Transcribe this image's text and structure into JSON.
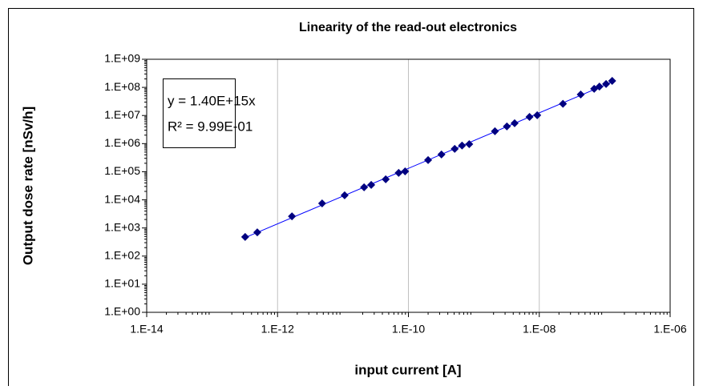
{
  "chart_data": {
    "type": "scatter",
    "title": "Linearity of the read-out electronics",
    "x_label": "input current [A]",
    "y_label": "Output dose rate [nSv/h]",
    "annotations": [
      "y = 1.40E+15x",
      "R² = 9.99E-01"
    ],
    "log_x": true,
    "log_y": true,
    "grid": "x",
    "trendline": true,
    "xlim": [
      1e-14,
      1e-06
    ],
    "ylim": [
      1,
      1000000000.0
    ],
    "xticks": [
      {
        "value": 1e-14,
        "label": "1.E-14"
      },
      {
        "value": 1e-12,
        "label": "1.E-12"
      },
      {
        "value": 1e-10,
        "label": "1.E-10"
      },
      {
        "value": 1e-08,
        "label": "1.E-08"
      },
      {
        "value": 1e-06,
        "label": "1.E-06"
      }
    ],
    "yticks": [
      {
        "value": 1,
        "label": "1.E+00"
      },
      {
        "value": 10,
        "label": "1.E+01"
      },
      {
        "value": 100,
        "label": "1.E+02"
      },
      {
        "value": 1000,
        "label": "1.E+03"
      },
      {
        "value": 10000,
        "label": "1.E+04"
      },
      {
        "value": 100000,
        "label": "1.E+05"
      },
      {
        "value": 1000000,
        "label": "1.E+06"
      },
      {
        "value": 10000000,
        "label": "1.E+07"
      },
      {
        "value": 100000000,
        "label": "1.E+08"
      },
      {
        "value": 1000000000,
        "label": "1.E+09"
      }
    ],
    "series": [
      {
        "color": "#000080",
        "x": [
          3.2e-13,
          4.9e-13,
          1.66e-12,
          4.8e-12,
          1.06e-11,
          2.1e-11,
          2.7e-11,
          4.5e-11,
          7.1e-11,
          8.9e-11,
          2e-10,
          3.2e-10,
          5.1e-10,
          6.6e-10,
          8.5e-10,
          2.1e-09,
          3.2e-09,
          4.2e-09,
          7.1e-09,
          9.3e-09,
          2.3e-08,
          4.3e-08,
          6.9e-08,
          8.3e-08,
          1.05e-07,
          1.3e-07
        ],
        "values": [
          480,
          700,
          2600,
          7500,
          14500,
          28000,
          34000,
          54000,
          91000,
          103000,
          260000,
          410000,
          650000,
          850000,
          960000,
          2750000,
          4100000,
          5300000,
          8900000,
          10200000,
          26000000,
          56000000,
          89000000,
          107000000,
          132000000,
          170000000
        ]
      }
    ]
  }
}
